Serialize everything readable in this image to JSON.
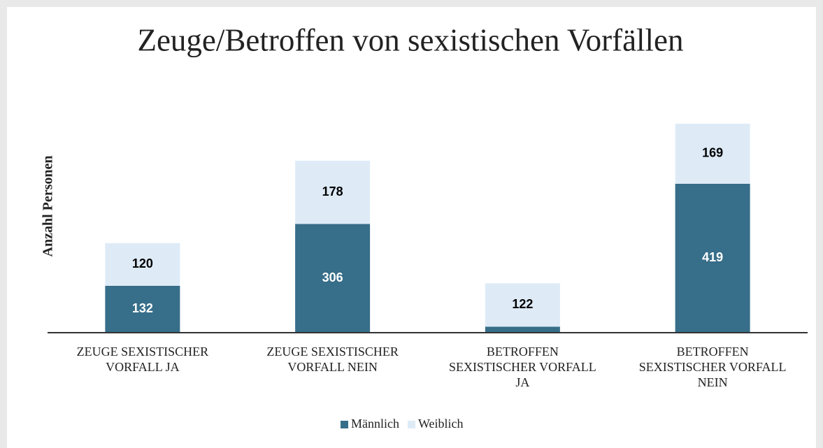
{
  "chart_data": {
    "type": "bar",
    "stacked": true,
    "title": "Zeuge/Betroffen von sexistischen Vorfällen",
    "y_label": "Anzahl Personen",
    "categories": [
      "ZEUGE SEXISTISCHER VORFALL JA",
      "ZEUGE SEXISTISCHER VORFALL NEIN",
      "BETROFFEN SEXISTISCHER VORFALL JA",
      "BETROFFEN SEXISTISCHER VORFALL NEIN"
    ],
    "series": [
      {
        "name": "Männlich",
        "color": "#376e89",
        "values": [
          132,
          306,
          17,
          419
        ]
      },
      {
        "name": "Weiblich",
        "color": "#deebf7",
        "values": [
          120,
          178,
          122,
          169
        ]
      }
    ],
    "legend": "bottom"
  }
}
